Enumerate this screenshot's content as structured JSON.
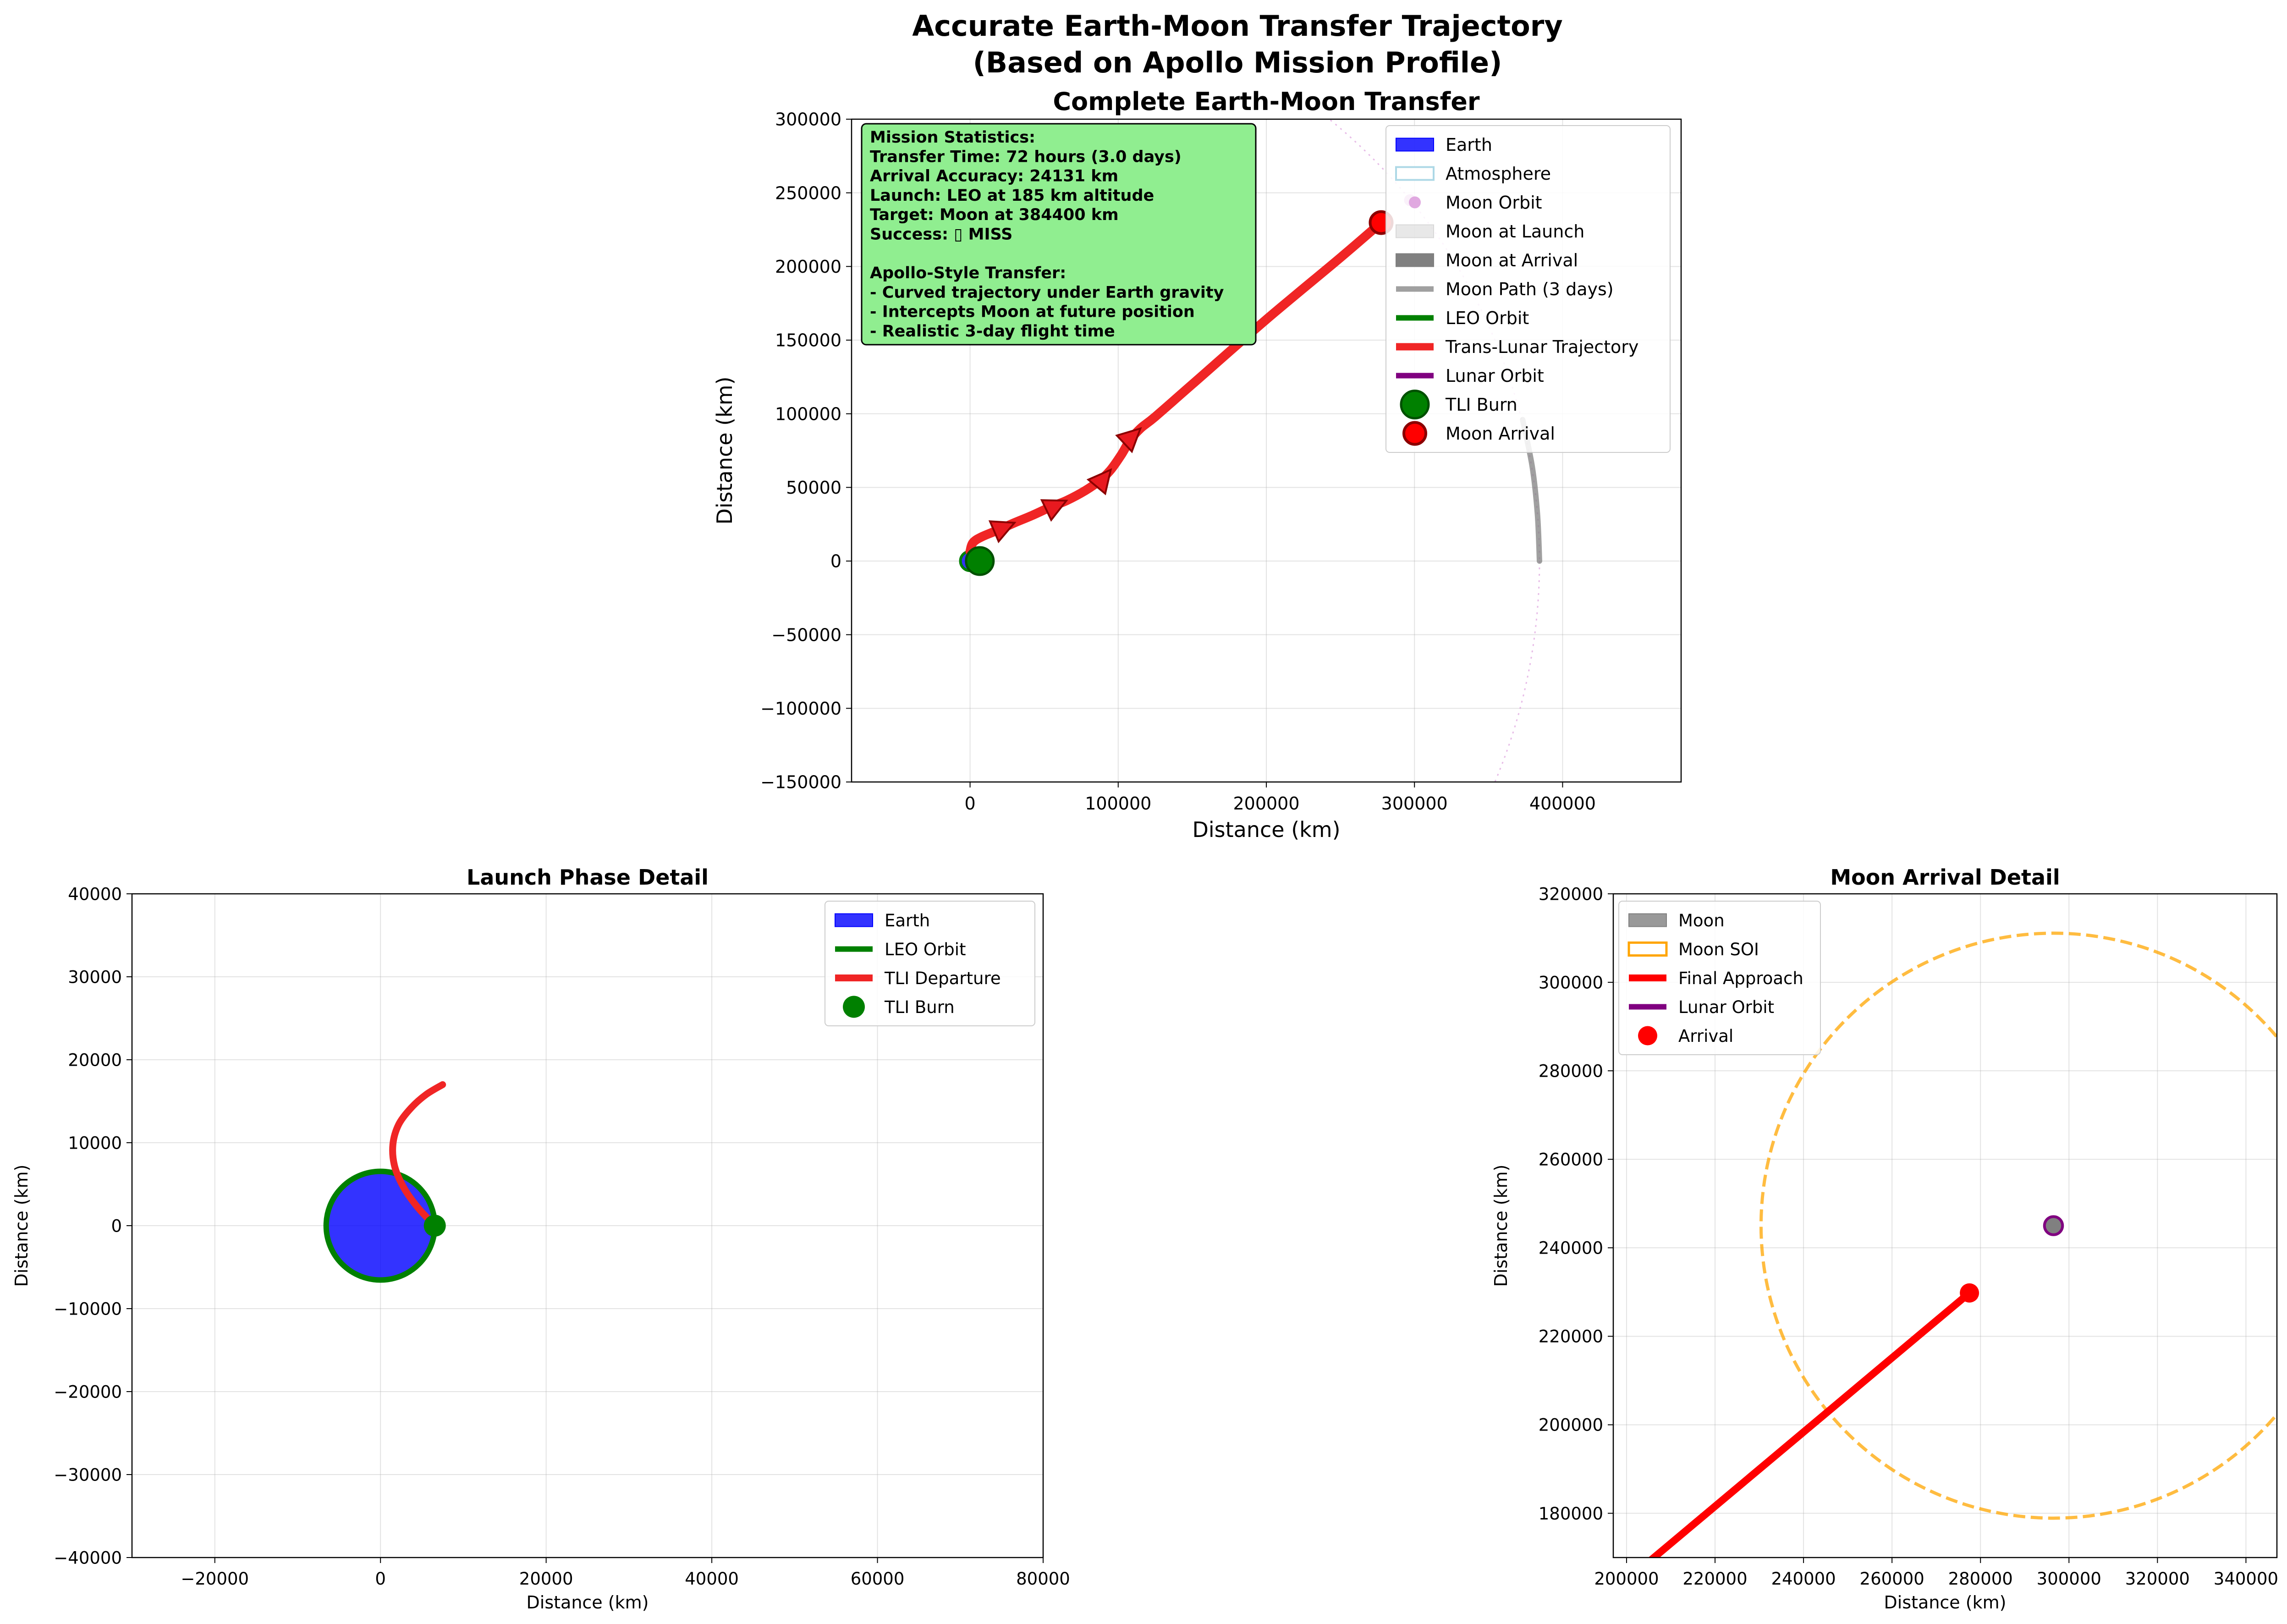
{
  "figure": {
    "suptitle_line1": "Accurate Earth-Moon Transfer Trajectory",
    "suptitle_line2": "(Based on Apollo Mission Profile)"
  },
  "colors": {
    "earth": "#0000ff",
    "leo": "#008000",
    "trajectory": "#ff0000",
    "moon": "#808080",
    "lunar_orbit": "#800080",
    "soi": "#ffa500",
    "atmosphere": "#add8e6",
    "moon_orbit": "#dda0dd",
    "stats_box": "#90ee90"
  },
  "chart_data": [
    {
      "id": "main",
      "type": "line",
      "title": "Complete Earth-Moon Transfer",
      "xlabel": "Distance (km)",
      "ylabel": "Distance (km)",
      "xlim": [
        -80000,
        480000
      ],
      "ylim": [
        -150000,
        300000
      ],
      "xticks": [
        "0",
        "100000",
        "200000",
        "300000",
        "400000"
      ],
      "yticks": [
        "−150000",
        "−100000",
        "−50000",
        "0",
        "50000",
        "100000",
        "150000",
        "200000",
        "250000",
        "300000"
      ],
      "grid": true,
      "legend_position": "top-right",
      "legend": [
        "Earth",
        "Atmosphere",
        "Moon Orbit",
        "Moon at Launch",
        "Moon at Arrival",
        "Moon Path (3 days)",
        "LEO Orbit",
        "Trans-Lunar Trajectory",
        "Lunar Orbit",
        "TLI Burn",
        "Moon Arrival"
      ],
      "moon_orbit_radius": 384400,
      "moon_path": [
        [
          384400,
          0
        ],
        [
          383000,
          32000
        ],
        [
          379500,
          64000
        ],
        [
          373000,
          96000
        ]
      ],
      "trajectory": [
        [
          0,
          6560
        ],
        [
          2000,
          12500
        ],
        [
          8000,
          16500
        ],
        [
          20000,
          21500
        ],
        [
          30000,
          26000
        ],
        [
          42000,
          31000
        ],
        [
          55000,
          37000
        ],
        [
          65000,
          41000
        ],
        [
          78000,
          48000
        ],
        [
          88000,
          55000
        ],
        [
          95000,
          62000
        ],
        [
          102000,
          72000
        ],
        [
          108000,
          82000
        ],
        [
          115000,
          90000
        ],
        [
          125000,
          98000
        ],
        [
          150000,
          120000
        ],
        [
          200000,
          164000
        ],
        [
          250000,
          206000
        ],
        [
          277500,
          229800
        ]
      ],
      "arrows": [
        [
          30000,
          26000
        ],
        [
          65000,
          41000
        ],
        [
          95000,
          62000
        ],
        [
          115000,
          90000
        ]
      ],
      "tli_burn": [
        6560,
        0
      ],
      "moon_arrival": [
        277500,
        229800
      ],
      "moon_at_launch": [
        384400,
        0
      ],
      "moon_dot": [
        297000,
        245000
      ],
      "stats": [
        "Mission Statistics:",
        "Transfer Time: 72 hours (3.0 days)",
        "Arrival Accuracy: 24131 km",
        "Launch: LEO at 185 km altitude",
        "Target: Moon at 384400 km",
        "Success: ▯ MISS",
        "",
        "Apollo-Style Transfer:",
        "- Curved trajectory under Earth gravity",
        "- Intercepts Moon at future position",
        "- Realistic 3-day flight time"
      ]
    },
    {
      "id": "launch",
      "type": "line",
      "title": "Launch Phase Detail",
      "xlabel": "Distance (km)",
      "ylabel": "Distance (km)",
      "xlim": [
        -30000,
        80000
      ],
      "ylim": [
        -40000,
        40000
      ],
      "xticks": [
        "−20000",
        "0",
        "20000",
        "40000",
        "60000",
        "80000"
      ],
      "yticks": [
        "−40000",
        "−30000",
        "−20000",
        "−10000",
        "0",
        "10000",
        "20000",
        "30000",
        "40000"
      ],
      "grid": true,
      "legend_position": "top-right",
      "legend": [
        "Earth",
        "LEO Orbit",
        "TLI Departure",
        "TLI Burn"
      ],
      "earth_radius": 6371,
      "leo_radius": 6556,
      "tli_departure": [
        [
          6556,
          0
        ],
        [
          4500,
          2200
        ],
        [
          2800,
          4600
        ],
        [
          1700,
          7200
        ],
        [
          1500,
          9800
        ],
        [
          2200,
          12200
        ],
        [
          3700,
          14200
        ],
        [
          5500,
          15800
        ],
        [
          7500,
          17000
        ]
      ],
      "tli_burn": [
        6556,
        0
      ]
    },
    {
      "id": "arrival",
      "type": "line",
      "title": "Moon Arrival Detail",
      "xlabel": "Distance (km)",
      "ylabel": "Distance (km)",
      "xlim": [
        197000,
        347000
      ],
      "ylim": [
        170000,
        320000
      ],
      "xticks": [
        "200000",
        "220000",
        "240000",
        "260000",
        "280000",
        "300000",
        "320000",
        "340000"
      ],
      "yticks": [
        "180000",
        "200000",
        "220000",
        "240000",
        "260000",
        "280000",
        "300000",
        "320000"
      ],
      "grid": true,
      "legend_position": "top-left",
      "legend": [
        "Moon",
        "Moon SOI",
        "Final Approach",
        "Lunar Orbit",
        "Arrival"
      ],
      "moon_center": [
        296500,
        245000
      ],
      "moon_radius": 1737,
      "lunar_orbit_radius": 1837,
      "soi_radius": 66100,
      "final_approach": [
        [
          205000,
          169000
        ],
        [
          277500,
          229800
        ]
      ],
      "arrival": [
        277500,
        229800
      ]
    }
  ]
}
